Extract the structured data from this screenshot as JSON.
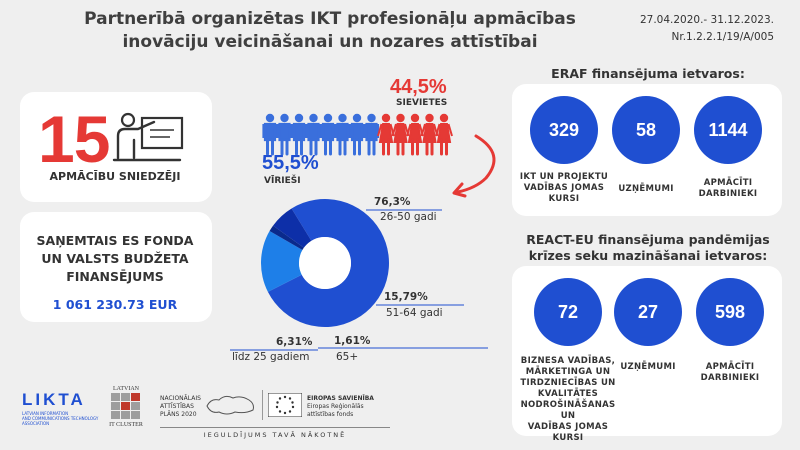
{
  "header": {
    "title_line1": "Partnerībā organizētas IKT profesionāļu apmācības",
    "title_line2": "inovāciju veicināšanai un nozares attīstībai",
    "dates": "27.04.2020.- 31.12.2023.",
    "project_no": "Nr.1.2.2.1/19/A/005"
  },
  "trainers": {
    "count": "15",
    "label": "APMĀCĪBU SNIEDZĒJI"
  },
  "funding": {
    "text_line1": "SAŅEMTAIS ES FONDA",
    "text_line2": "UN VALSTS BUDŽETA",
    "text_line3": "FINANSĒJUMS",
    "amount": "1 061 230.73 EUR"
  },
  "gender": {
    "women_pct": "44,5%",
    "women_label": "SIEVIETES",
    "men_pct": "55,5%",
    "men_label": "VĪRIEŠI",
    "colors": {
      "men": "#3a6fdc",
      "women": "#e53935"
    }
  },
  "chart_data": {
    "type": "pie",
    "segments": [
      {
        "label": "26-50 gadi",
        "pct_text": "76,3%",
        "value": 76.3,
        "color": "#1f4fd1"
      },
      {
        "label": "51-64 gadi",
        "pct_text": "15,79%",
        "value": 15.79,
        "color": "#1e7fe8"
      },
      {
        "label": "65+",
        "pct_text": "1,61%",
        "value": 1.61,
        "color": "#0a2a8c"
      },
      {
        "label": "līdz 25 gadiem",
        "pct_text": "6,31%",
        "value": 6.31,
        "color": "#0d2fa8"
      }
    ]
  },
  "eraf": {
    "title": "ERAF finansējuma ietvaros:",
    "items": [
      {
        "value": "329",
        "caption_l1": "IKT UN PROJEKTU",
        "caption_l2": "VADĪBAS JOMAS",
        "caption_l3": "KURSI"
      },
      {
        "value": "58",
        "caption_l1": "UZŅĒMUMI",
        "caption_l2": "",
        "caption_l3": ""
      },
      {
        "value": "1144",
        "caption_l1": "APMĀCĪTI",
        "caption_l2": "DARBINIEKI",
        "caption_l3": ""
      }
    ]
  },
  "react": {
    "title_line1": "REACT-EU finansējuma pandēmijas",
    "title_line2": "krīzes seku mazināšanai ietvaros:",
    "items": [
      {
        "value": "72",
        "caption_l1": "BIZNESA VADĪBAS,",
        "caption_l2": "MĀRKETINGA UN",
        "caption_l3": "TIRDZNIECĪBAS UN",
        "caption_l4": "KVALITĀTES",
        "caption_l5": "NODROŠINĀŠANAS UN",
        "caption_l6": "VADĪBAS JOMAS KURSI"
      },
      {
        "value": "27",
        "caption_l1": "UZŅĒMUMI"
      },
      {
        "value": "598",
        "caption_l1": "APMĀCĪTI",
        "caption_l2": "DARBINIEKI"
      }
    ]
  },
  "footer": {
    "likta": "LIKTA",
    "likta_sub1": "LATVIAN INFORMATION",
    "likta_sub2": "AND COMMUNICATIONS TECHNOLOGY",
    "likta_sub3": "ASSOCIATION",
    "cluster_top": "LATVIAN",
    "cluster_bottom": "IT CLUSTER",
    "nap1": "NACIONĀLAIS",
    "nap2": "ATTĪSTĪBAS",
    "nap3": "PLĀNS 2020",
    "eu1": "EIROPAS SAVIENĪBA",
    "eu2": "Eiropas Reģionālās",
    "eu3": "attīstības fonds",
    "slogan": "IEGULDĪJUMS TAVĀ NĀKOTNĒ"
  }
}
